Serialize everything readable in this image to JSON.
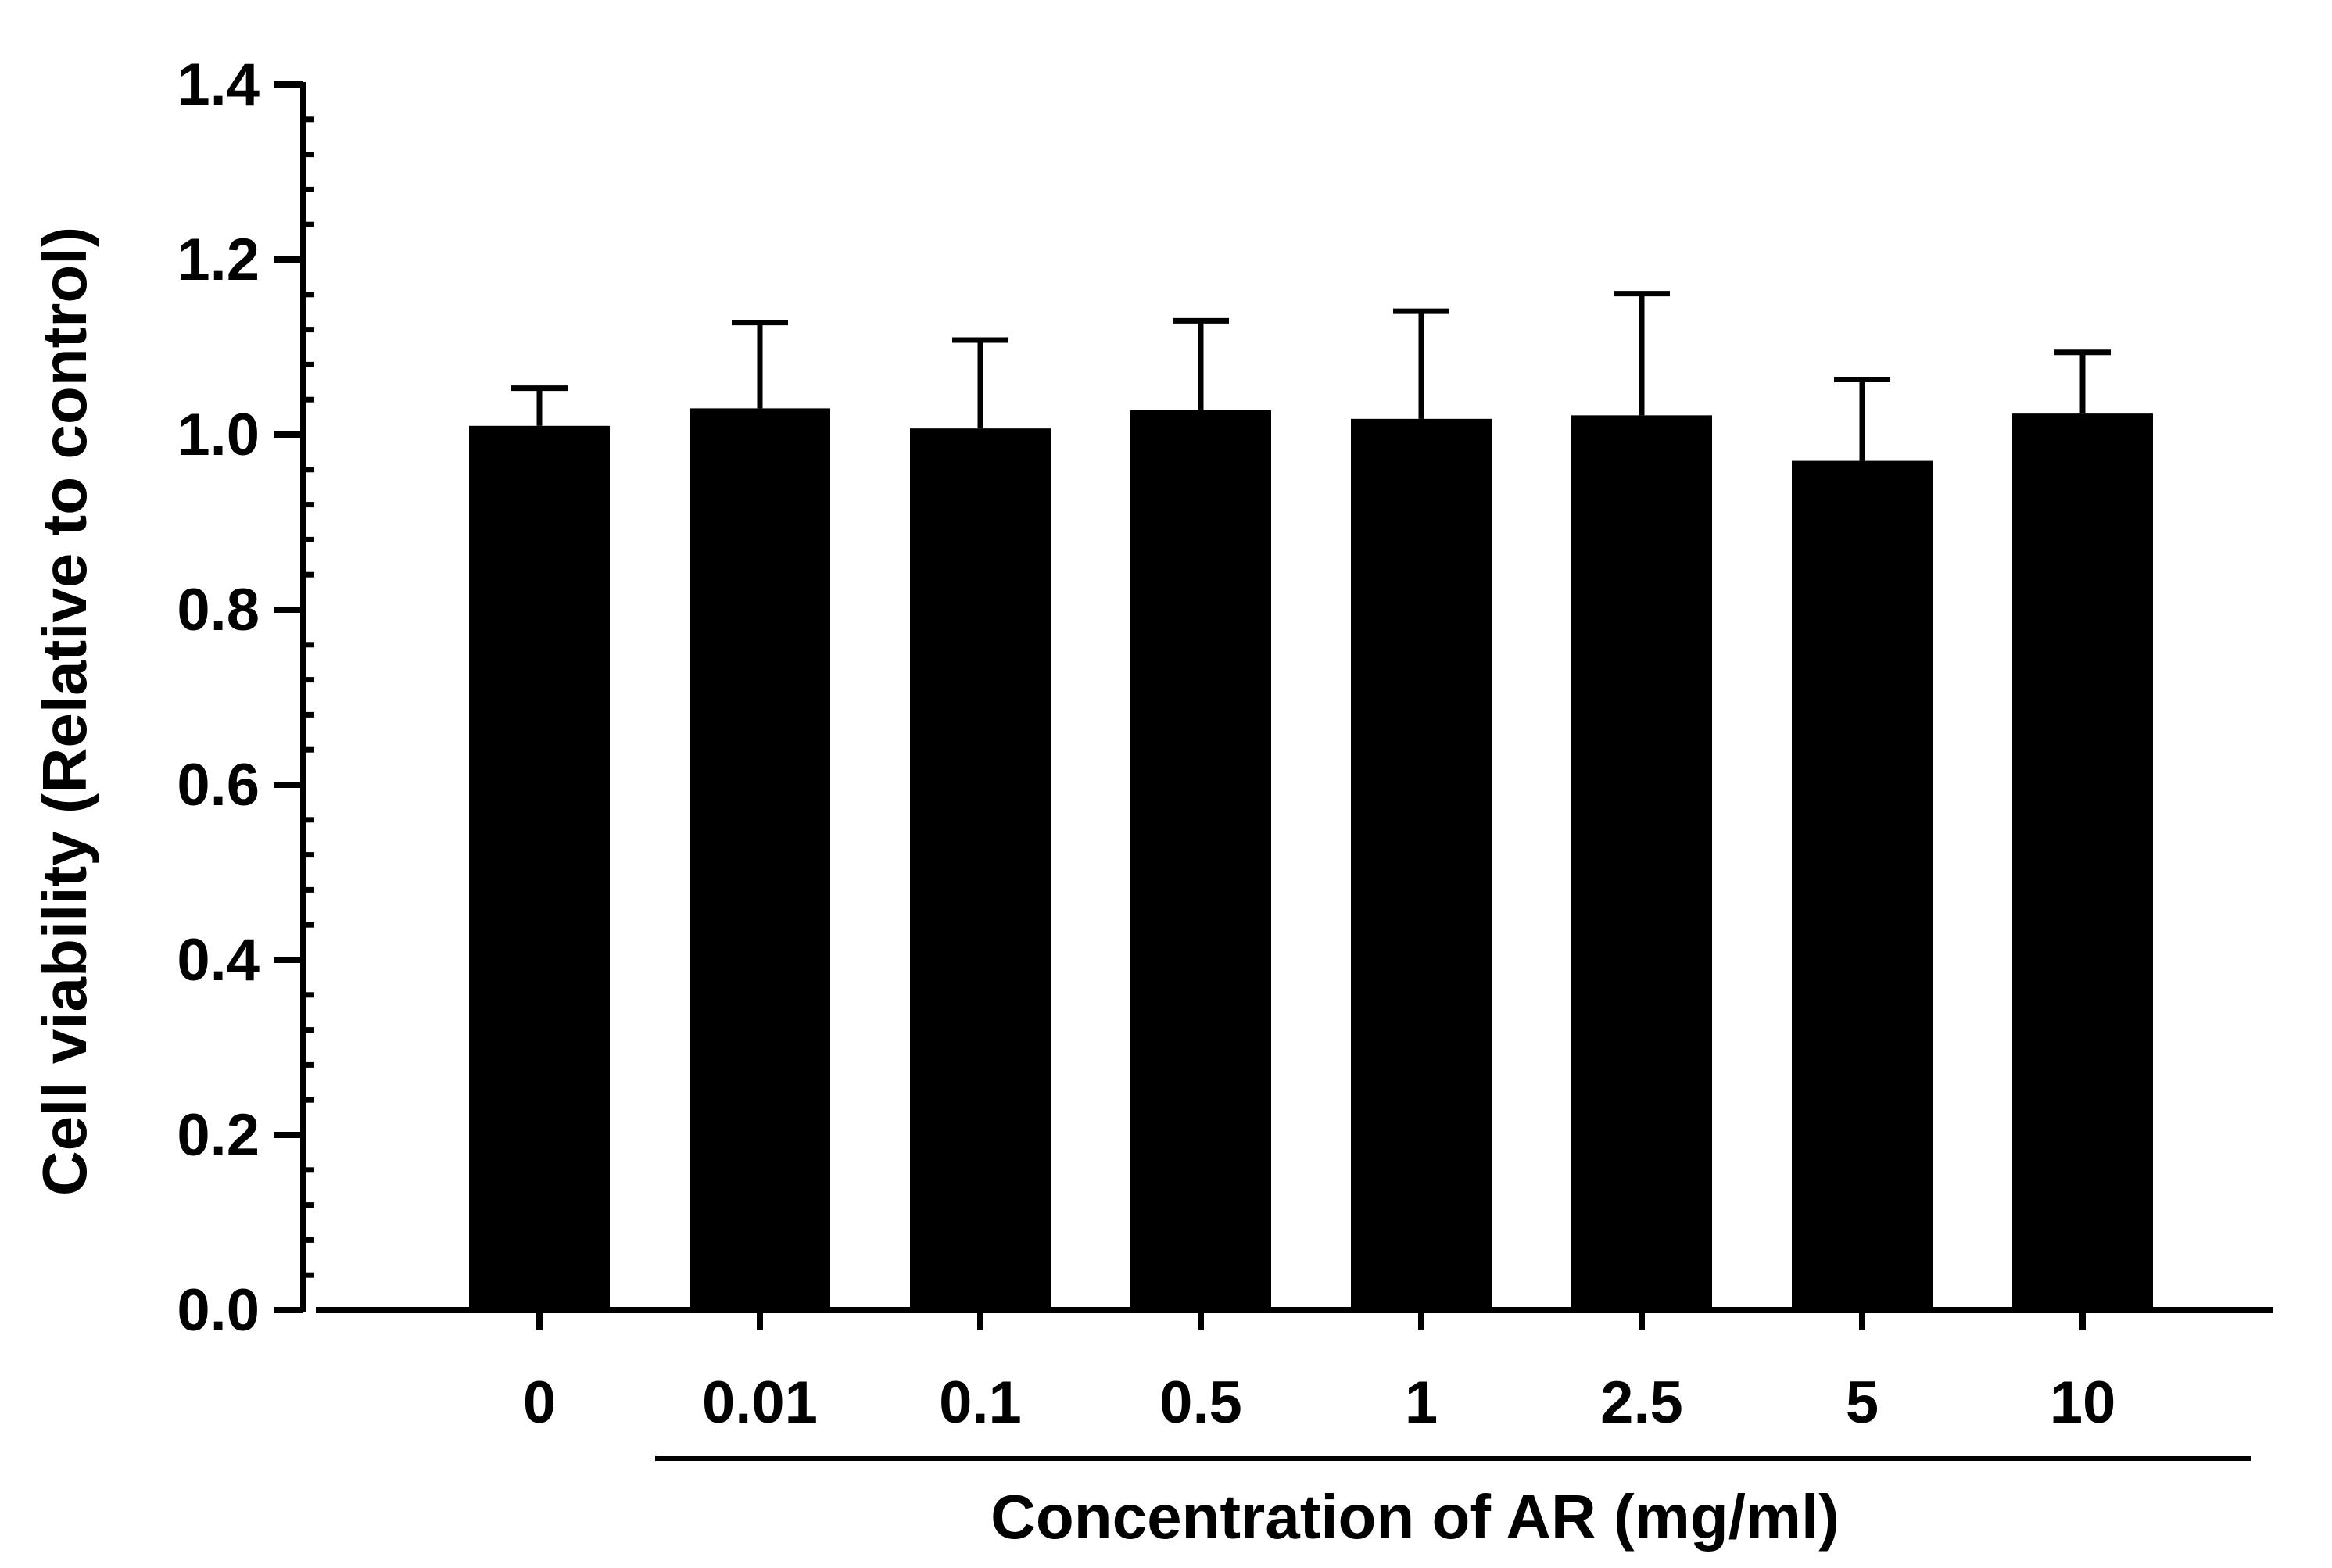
{
  "chart_data": {
    "type": "bar",
    "title": "",
    "ylabel": "Cell viability (Relative to control)",
    "xlabel": "Concentration of AR (mg/ml)",
    "categories": [
      "0",
      "0.01",
      "0.1",
      "0.5",
      "1",
      "2.5",
      "5",
      "10"
    ],
    "values": [
      1.01,
      1.03,
      1.007,
      1.028,
      1.018,
      1.022,
      0.97,
      1.024
    ],
    "error_upper": [
      1.053,
      1.128,
      1.108,
      1.13,
      1.141,
      1.161,
      1.063,
      1.094
    ],
    "ylim": [
      0,
      1.4
    ],
    "yticks": [
      "0.0",
      "0.2",
      "0.4",
      "0.6",
      "0.8",
      "1.0",
      "1.2",
      "1.4"
    ],
    "grid": false,
    "legend": "none",
    "bar_color": "#000000"
  }
}
